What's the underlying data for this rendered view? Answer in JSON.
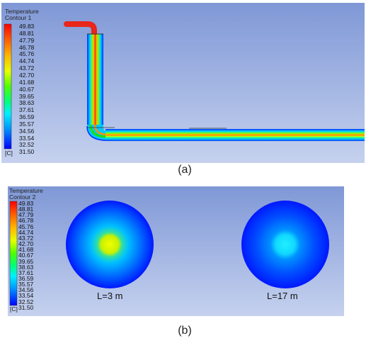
{
  "legend_scale": [
    "49.83",
    "48.81",
    "47.79",
    "46.78",
    "45.76",
    "44.74",
    "43.72",
    "42.70",
    "41.68",
    "40.67",
    "39.65",
    "38.63",
    "37.61",
    "36.59",
    "35.57",
    "34.56",
    "33.54",
    "32.52",
    "31.50"
  ],
  "legend_unit": "[C]",
  "panel_a": {
    "legend_title_line1": "Temperature",
    "legend_title_line2": "Contour 1",
    "caption": "(a)"
  },
  "panel_b": {
    "legend_title_line1": "Temperature",
    "legend_title_line2": "Contour 2",
    "caption": "(b)",
    "sections": [
      {
        "label": "L=3 m",
        "core_temperature_c": 45.0
      },
      {
        "label": "L=17 m",
        "core_temperature_c": 36.6
      }
    ]
  },
  "colors": {
    "background_top": "#7f98d6",
    "background_bottom": "#c5d1ee",
    "scale_hot": "#ff0000",
    "scale_cold": "#0000ff"
  }
}
